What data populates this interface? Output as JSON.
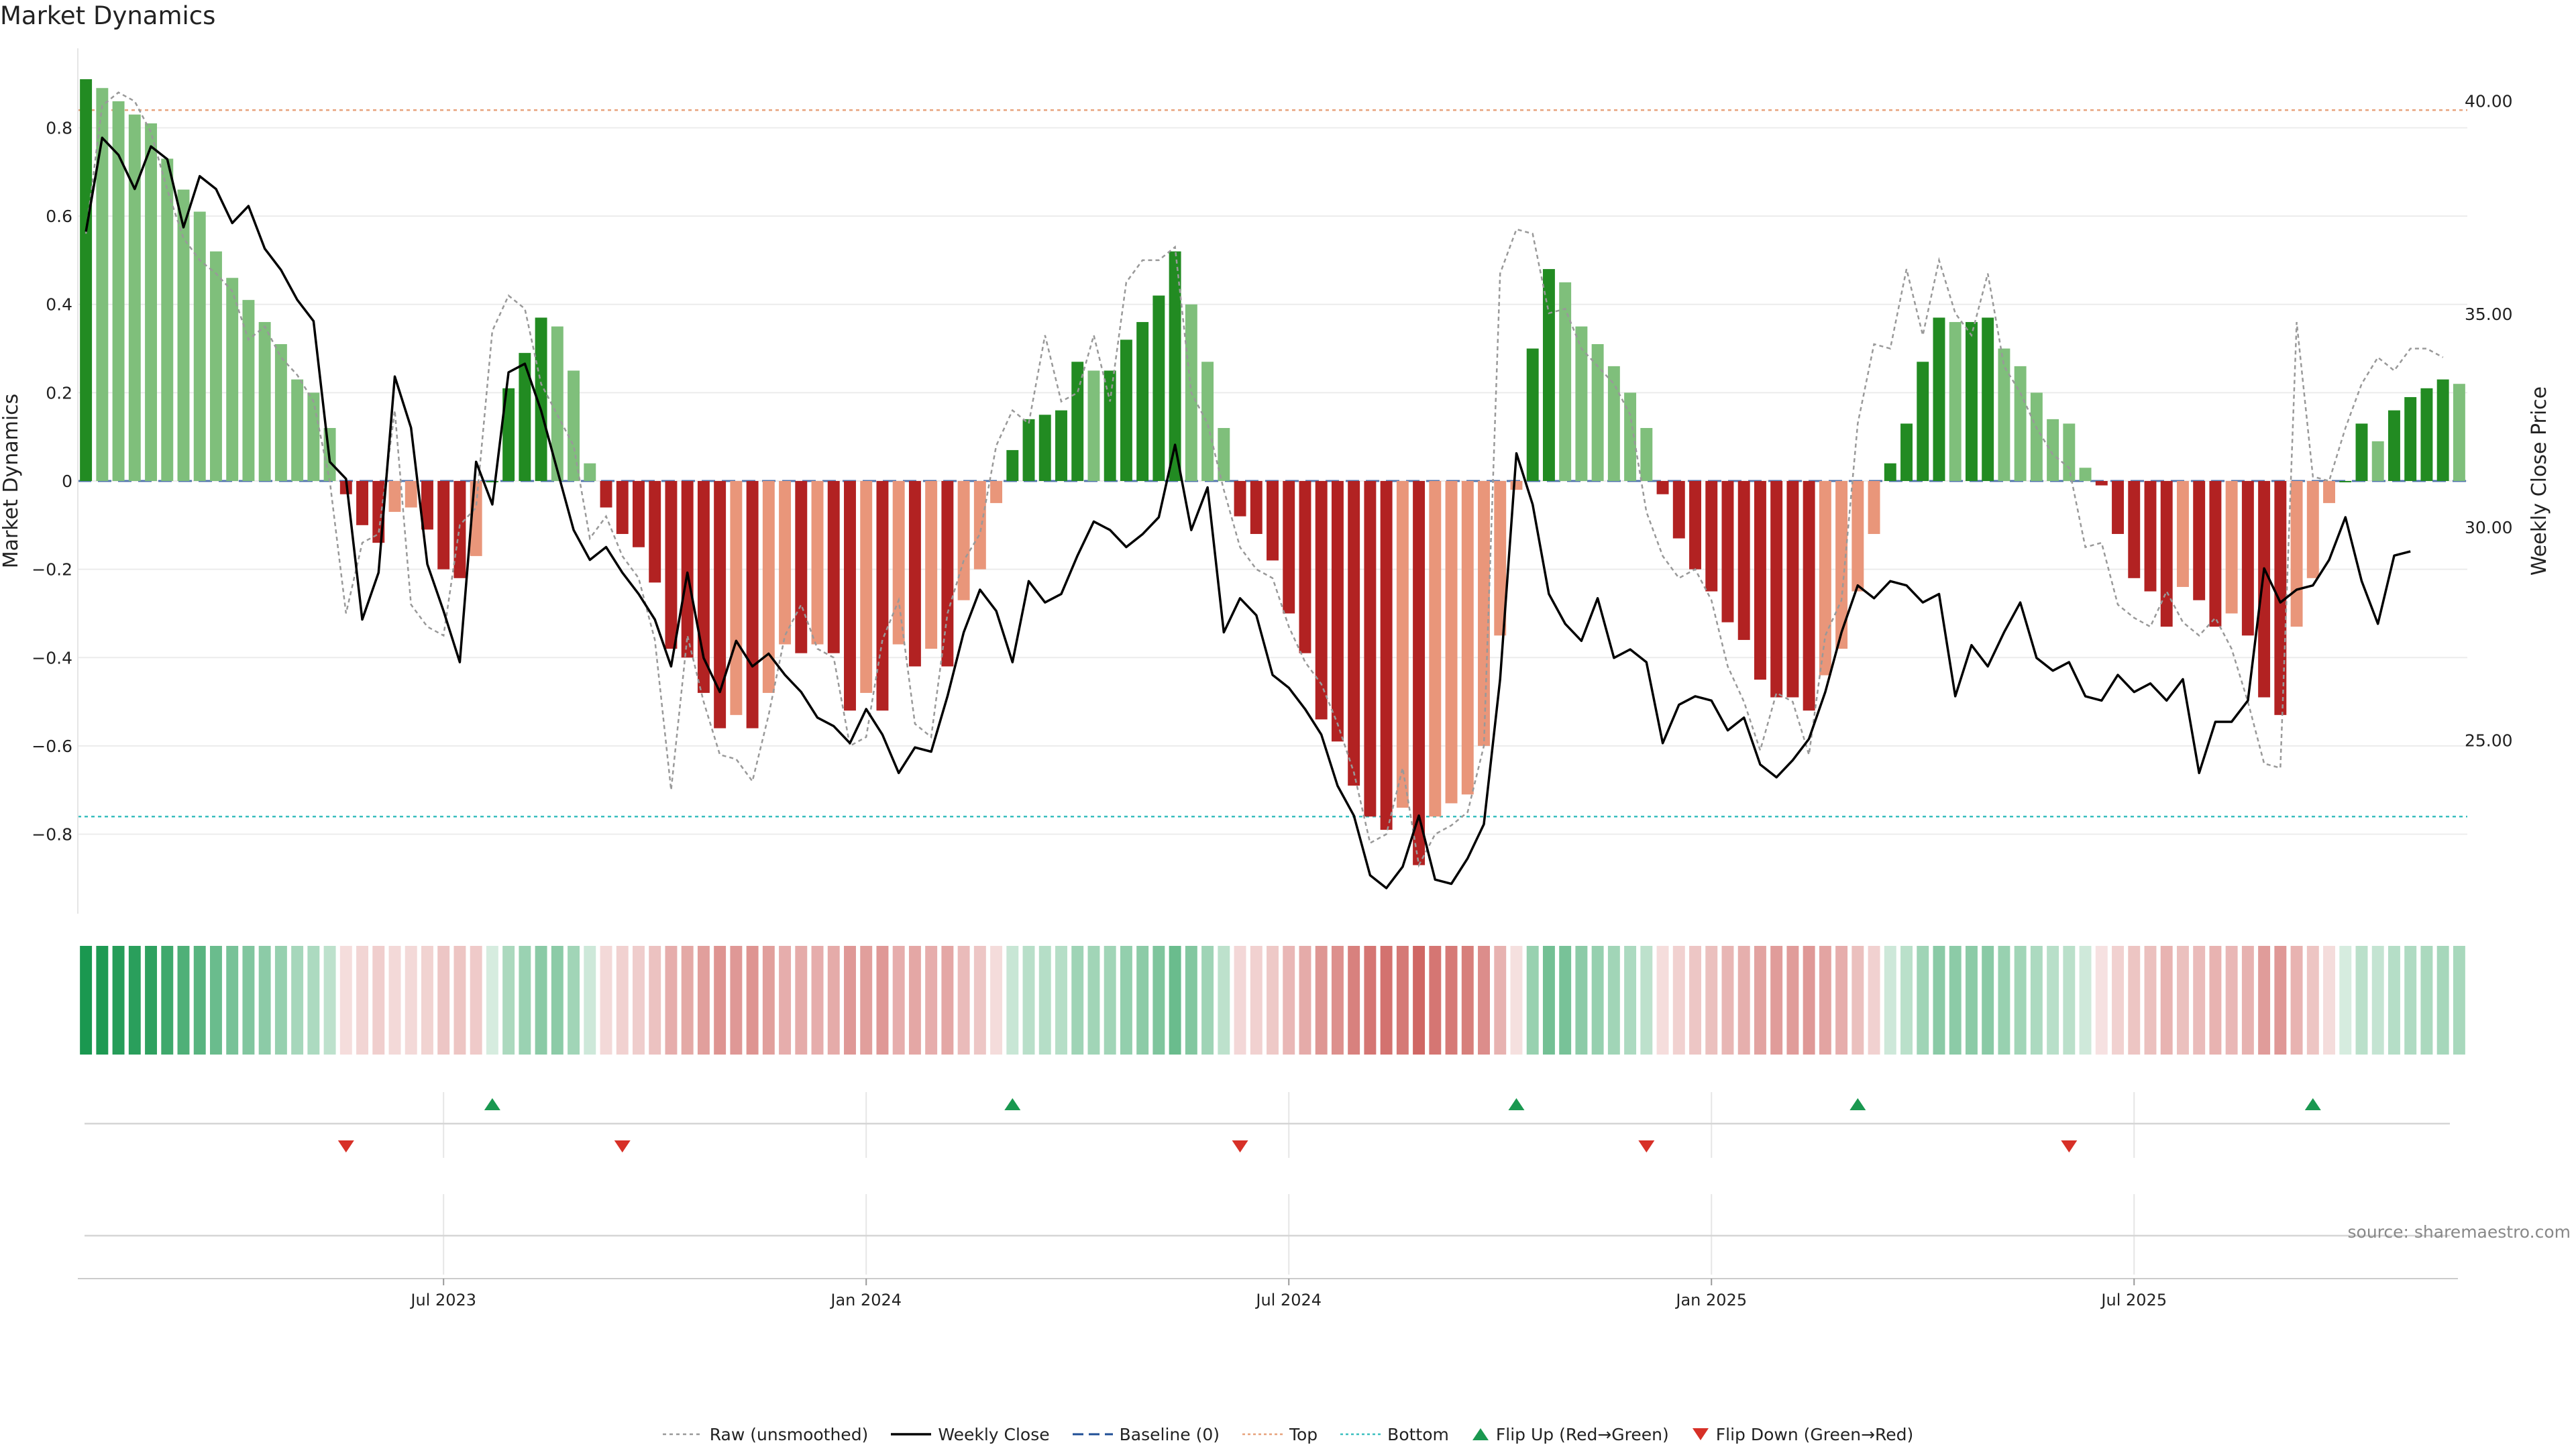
{
  "title": "Market Dynamics",
  "source": "source: sharemaestro.com",
  "colors": {
    "strong_green": "#228b22",
    "light_green": "#7fbf7b",
    "strong_red": "#b22222",
    "light_red": "#e9967a",
    "price_line": "#000000",
    "raw_line": "#999999",
    "baseline": "#1f4e96",
    "top": "#e8a27c",
    "bottom": "#3bbfbf",
    "flip_up": "#1a9850",
    "flip_down": "#d73027"
  },
  "legend": [
    {
      "key": "raw",
      "label": "Raw (unsmoothed)"
    },
    {
      "key": "close",
      "label": "Weekly Close"
    },
    {
      "key": "baseline",
      "label": "Baseline (0)"
    },
    {
      "key": "top",
      "label": "Top"
    },
    {
      "key": "bottom",
      "label": "Bottom"
    },
    {
      "key": "flipup",
      "label": "Flip Up (Red→Green)"
    },
    {
      "key": "flipdown",
      "label": "Flip Down (Green→Red)"
    }
  ],
  "chart_data": {
    "type": "bar",
    "ylabel": "Market Dynamics",
    "y2label": "Weekly Close Price",
    "ylim": [
      -0.98,
      0.98
    ],
    "y2lim": [
      21.2,
      41.5
    ],
    "yticks": [
      "0.8",
      "0.6",
      "0.4",
      "0.2",
      "0",
      "−0.2",
      "−0.4",
      "−0.6",
      "−0.8"
    ],
    "ytick_values": [
      0.8,
      0.6,
      0.4,
      0.2,
      0,
      -0.2,
      -0.4,
      -0.6,
      -0.8
    ],
    "y2ticks": [
      "40.00",
      "35.00",
      "30.00",
      "25.00"
    ],
    "y2tick_values": [
      40,
      35,
      30,
      25
    ],
    "x_tick_labels": [
      "Jul 2023",
      "Jan 2024",
      "Jul 2024",
      "Jan 2025",
      "Jul 2025"
    ],
    "x_tick_weeks": [
      22,
      48,
      74,
      100,
      126
    ],
    "top": 0.84,
    "bottom": -0.76,
    "baseline": 0,
    "bars": [
      0.91,
      0.89,
      0.86,
      0.83,
      0.81,
      0.73,
      0.66,
      0.61,
      0.52,
      0.46,
      0.41,
      0.36,
      0.31,
      0.23,
      0.2,
      0.12,
      -0.03,
      -0.1,
      -0.14,
      -0.07,
      -0.06,
      -0.11,
      -0.2,
      -0.22,
      -0.17,
      0.0,
      0.21,
      0.29,
      0.37,
      0.35,
      0.25,
      0.04,
      -0.06,
      -0.12,
      -0.15,
      -0.23,
      -0.38,
      -0.4,
      -0.48,
      -0.56,
      -0.53,
      -0.56,
      -0.48,
      -0.37,
      -0.39,
      -0.37,
      -0.39,
      -0.52,
      -0.48,
      -0.52,
      -0.37,
      -0.42,
      -0.38,
      -0.42,
      -0.27,
      -0.2,
      -0.05,
      0.07,
      0.14,
      0.15,
      0.16,
      0.27,
      0.25,
      0.25,
      0.32,
      0.36,
      0.42,
      0.52,
      0.4,
      0.27,
      0.12,
      -0.08,
      -0.12,
      -0.18,
      -0.3,
      -0.39,
      -0.54,
      -0.59,
      -0.69,
      -0.76,
      -0.79,
      -0.74,
      -0.87,
      -0.76,
      -0.73,
      -0.71,
      -0.6,
      -0.35,
      -0.02,
      0.3,
      0.48,
      0.45,
      0.35,
      0.31,
      0.26,
      0.2,
      0.12,
      -0.03,
      -0.13,
      -0.2,
      -0.25,
      -0.32,
      -0.36,
      -0.45,
      -0.49,
      -0.49,
      -0.52,
      -0.44,
      -0.38,
      -0.25,
      -0.12,
      0.04,
      0.13,
      0.27,
      0.37,
      0.36,
      0.36,
      0.37,
      0.3,
      0.26,
      0.2,
      0.14,
      0.13,
      0.03,
      -0.01,
      -0.12,
      -0.22,
      -0.25,
      -0.33,
      -0.24,
      -0.27,
      -0.33,
      -0.3,
      -0.35,
      -0.49,
      -0.53,
      -0.33,
      -0.22,
      -0.05,
      0.0,
      0.13,
      0.09,
      0.16,
      0.19,
      0.21,
      0.23,
      0.22
    ],
    "raw": [
      0.56,
      0.85,
      0.88,
      0.86,
      0.79,
      0.66,
      0.55,
      0.5,
      0.47,
      0.43,
      0.32,
      0.35,
      0.28,
      0.24,
      0.18,
      0.0,
      -0.3,
      -0.14,
      -0.12,
      0.16,
      -0.28,
      -0.33,
      -0.35,
      -0.1,
      -0.06,
      0.34,
      0.42,
      0.39,
      0.22,
      0.15,
      0.08,
      -0.13,
      -0.08,
      -0.17,
      -0.22,
      -0.36,
      -0.7,
      -0.35,
      -0.5,
      -0.62,
      -0.63,
      -0.68,
      -0.53,
      -0.35,
      -0.28,
      -0.38,
      -0.4,
      -0.6,
      -0.58,
      -0.36,
      -0.27,
      -0.55,
      -0.58,
      -0.3,
      -0.18,
      -0.12,
      0.08,
      0.16,
      0.13,
      0.33,
      0.18,
      0.2,
      0.33,
      0.18,
      0.45,
      0.5,
      0.5,
      0.53,
      0.2,
      0.13,
      -0.02,
      -0.15,
      -0.2,
      -0.22,
      -0.33,
      -0.41,
      -0.46,
      -0.55,
      -0.66,
      -0.82,
      -0.8,
      -0.65,
      -0.87,
      -0.8,
      -0.78,
      -0.75,
      -0.6,
      0.47,
      0.57,
      0.56,
      0.38,
      0.39,
      0.3,
      0.26,
      0.22,
      0.15,
      -0.07,
      -0.17,
      -0.22,
      -0.2,
      -0.27,
      -0.42,
      -0.5,
      -0.61,
      -0.48,
      -0.5,
      -0.62,
      -0.35,
      -0.27,
      0.13,
      0.31,
      0.3,
      0.48,
      0.33,
      0.5,
      0.38,
      0.33,
      0.47,
      0.26,
      0.2,
      0.12,
      0.06,
      0.03,
      -0.15,
      -0.14,
      -0.28,
      -0.31,
      -0.33,
      -0.25,
      -0.32,
      -0.35,
      -0.31,
      -0.38,
      -0.5,
      -0.64,
      -0.65,
      0.36,
      0.01,
      0.0,
      0.12,
      0.22,
      0.28,
      0.25,
      0.3,
      0.3,
      0.28
    ],
    "close": [
      37.2,
      39.4,
      39.0,
      38.2,
      39.2,
      38.9,
      37.3,
      38.5,
      38.2,
      37.4,
      37.8,
      36.8,
      36.3,
      35.6,
      35.1,
      31.8,
      31.4,
      28.1,
      29.2,
      33.8,
      32.6,
      29.4,
      28.3,
      27.1,
      31.8,
      30.8,
      33.9,
      34.1,
      33.0,
      31.6,
      30.2,
      29.5,
      29.8,
      29.2,
      28.7,
      28.1,
      27.0,
      29.2,
      27.2,
      26.4,
      27.6,
      27.0,
      27.3,
      26.8,
      26.4,
      25.8,
      25.6,
      25.2,
      26.0,
      25.4,
      24.5,
      25.1,
      25.0,
      26.3,
      27.8,
      28.8,
      28.3,
      27.1,
      29.0,
      28.5,
      28.7,
      29.6,
      30.4,
      30.2,
      29.8,
      30.1,
      30.5,
      32.2,
      30.2,
      31.2,
      27.8,
      28.6,
      28.2,
      26.8,
      26.5,
      26.0,
      25.4,
      24.2,
      23.5,
      22.1,
      21.8,
      22.3,
      23.5,
      22.0,
      21.9,
      22.5,
      23.3,
      26.7,
      32.0,
      30.8,
      28.7,
      28.0,
      27.6,
      28.6,
      27.2,
      27.4,
      27.1,
      25.2,
      26.1,
      26.3,
      26.2,
      25.5,
      25.8,
      24.7,
      24.4,
      24.8,
      25.3,
      26.4,
      27.8,
      28.9,
      28.6,
      29.0,
      28.9,
      28.5,
      28.7,
      26.3,
      27.5,
      27.0,
      27.8,
      28.5,
      27.2,
      26.9,
      27.1,
      26.3,
      26.2,
      26.8,
      26.4,
      26.6,
      26.2,
      26.7,
      24.5,
      25.7,
      25.7,
      26.2,
      29.3,
      28.5,
      28.8,
      28.9,
      29.5,
      30.5,
      29.0,
      28.0,
      29.6,
      29.7
    ],
    "flip_up_weeks": [
      25,
      57,
      88,
      109,
      137
    ],
    "flip_down_weeks": [
      16,
      33,
      71,
      96,
      122
    ]
  }
}
